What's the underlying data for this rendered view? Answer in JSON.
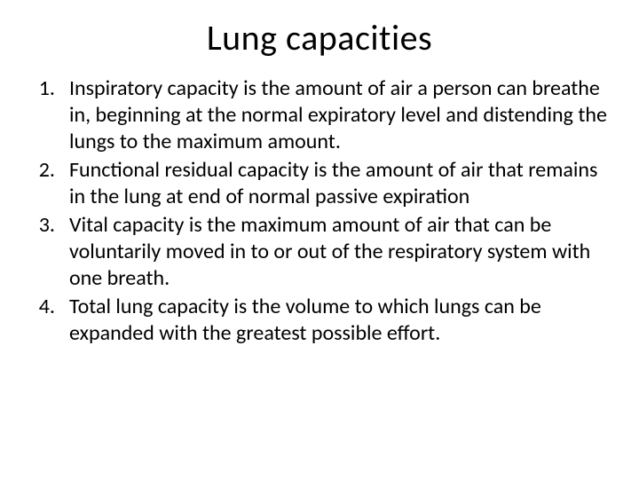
{
  "title": "Lung capacities",
  "items": [
    {
      "num": "1.",
      "text": "Inspiratory capacity is the amount of air a person can breathe in, beginning at the normal expiratory level and distending the lungs to the maximum amount."
    },
    {
      "num": "2.",
      "text": "Functional residual capacity  is the amount of air that remains in the lung at end of normal passive expiration"
    },
    {
      "num": "3.",
      "text": "Vital capacity is the maximum amount of air that can be voluntarily moved in to or out of the respiratory system with one breath."
    },
    {
      "num": "4.",
      "text": "Total lung capacity is the volume to which lungs can be expanded with the greatest possible effort."
    }
  ],
  "colors": {
    "background": "#ffffff",
    "text": "#000000"
  },
  "typography": {
    "title_fontsize": 40,
    "body_fontsize": 24,
    "font_family": "Calibri"
  }
}
